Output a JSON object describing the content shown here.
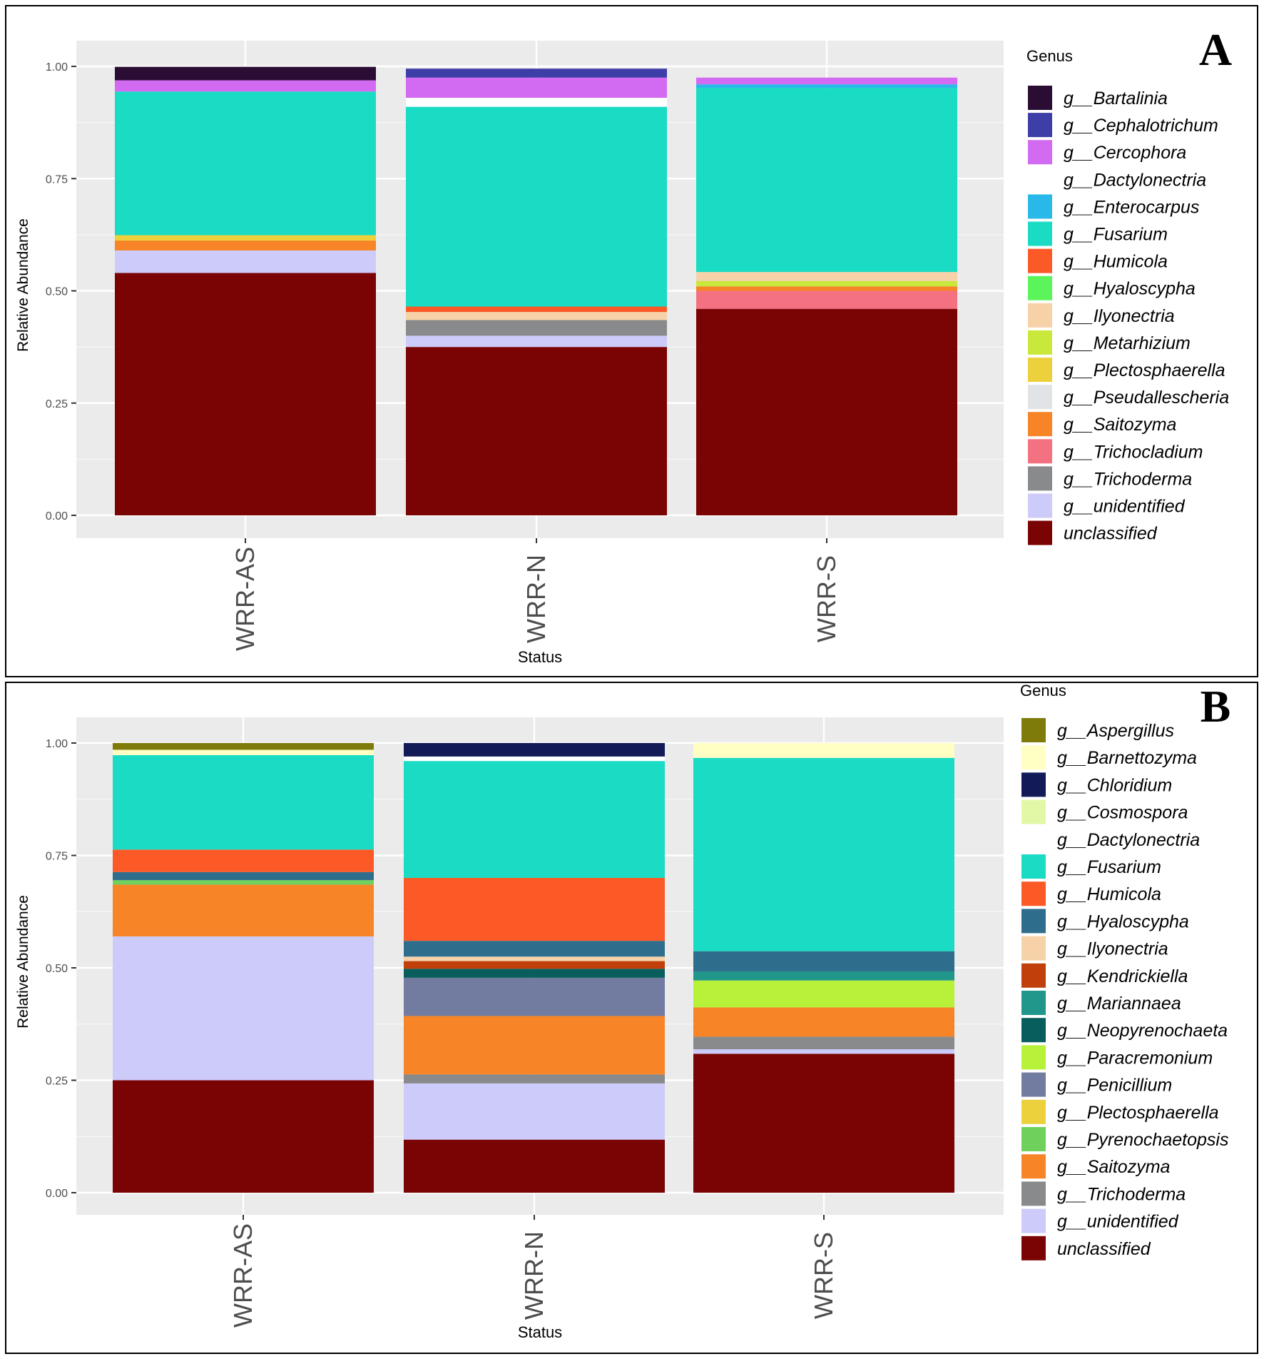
{
  "chart_data": [
    {
      "type": "bar",
      "stacked": true,
      "panel_label": "A",
      "xlabel": "Status",
      "ylabel": "Relative Abundance",
      "ylim": [
        0,
        1
      ],
      "yticks": [
        "0.00",
        "0.25",
        "0.50",
        "0.75",
        "1.00"
      ],
      "legend_title": "Genus",
      "legend_position": "right",
      "categories": [
        "WRR-AS",
        "WRR-N",
        "WRR-S"
      ],
      "series": [
        {
          "name": "g__Bartalinia",
          "color": "#2b0d33",
          "values": [
            0.03,
            0,
            0
          ]
        },
        {
          "name": "g__Cephalotrichum",
          "color": "#3e3ea8",
          "values": [
            0,
            0.02,
            0
          ]
        },
        {
          "name": "g__Cercophora",
          "color": "#d36af2",
          "values": [
            0.025,
            0.045,
            0.015
          ]
        },
        {
          "name": "g__Dactylonectria",
          "color": "#ffffff",
          "values": [
            0,
            0.02,
            0
          ]
        },
        {
          "name": "g__Enterocarpus",
          "color": "#28b9e8",
          "values": [
            0,
            0,
            0.008
          ]
        },
        {
          "name": "g__Fusarium",
          "color": "#1adbc4",
          "values": [
            0.32,
            0.445,
            0.41
          ]
        },
        {
          "name": "g__Humicola",
          "color": "#fb5926",
          "values": [
            0,
            0.012,
            0
          ]
        },
        {
          "name": "g__Hyaloscypha",
          "color": "#5bf55b",
          "values": [
            0,
            0,
            0
          ]
        },
        {
          "name": "g__Ilyonectria",
          "color": "#f7d2a8",
          "values": [
            0,
            0.018,
            0.02
          ]
        },
        {
          "name": "g__Metarhizium",
          "color": "#c8e83c",
          "values": [
            0,
            0,
            0.012
          ]
        },
        {
          "name": "g__Plectosphaerella",
          "color": "#ecd03c",
          "values": [
            0.012,
            0,
            0
          ]
        },
        {
          "name": "g__Pseudallescheria",
          "color": "#e0e4e6",
          "values": [
            0,
            0,
            0
          ]
        },
        {
          "name": "g__Saitozyma",
          "color": "#f78427",
          "values": [
            0.022,
            0,
            0.01
          ]
        },
        {
          "name": "g__Trichocladium",
          "color": "#f37181",
          "values": [
            0,
            0,
            0.04
          ]
        },
        {
          "name": "g__Trichoderma",
          "color": "#888a8c",
          "values": [
            0,
            0.035,
            0
          ]
        },
        {
          "name": "g__unidentified",
          "color": "#cccbfa",
          "values": [
            0.05,
            0.025,
            0
          ]
        },
        {
          "name": "unclassified",
          "color": "#7a0403",
          "values": [
            0.54,
            0.375,
            0.46
          ]
        }
      ]
    },
    {
      "type": "bar",
      "stacked": true,
      "panel_label": "B",
      "xlabel": "Status",
      "ylabel": "Relative Abundance",
      "ylim": [
        0,
        1
      ],
      "yticks": [
        "0.00",
        "0.25",
        "0.50",
        "0.75",
        "1.00"
      ],
      "legend_title": "Genus",
      "legend_position": "right",
      "categories": [
        "WRR-AS",
        "WRR-N",
        "WRR-S"
      ],
      "series": [
        {
          "name": "g__Aspergillus",
          "color": "#7f7b0b",
          "values": [
            0.015,
            0,
            0
          ]
        },
        {
          "name": "g__Barnettozyma",
          "color": "#fffec3",
          "values": [
            0.012,
            0,
            0.033
          ]
        },
        {
          "name": "g__Chloridium",
          "color": "#121b58",
          "values": [
            0,
            0.03,
            0
          ]
        },
        {
          "name": "g__Cosmospora",
          "color": "#e2f8a7",
          "values": [
            0,
            0,
            0
          ]
        },
        {
          "name": "g__Dactylonectria",
          "color": "#ffffff",
          "values": [
            0,
            0.01,
            0
          ]
        },
        {
          "name": "g__Fusarium",
          "color": "#1adbc4",
          "values": [
            0.21,
            0.26,
            0.43
          ]
        },
        {
          "name": "g__Humicola",
          "color": "#fb5926",
          "values": [
            0.05,
            0.14,
            0
          ]
        },
        {
          "name": "g__Hyaloscypha",
          "color": "#2e6e8c",
          "values": [
            0.018,
            0.035,
            0.045
          ]
        },
        {
          "name": "g__Ilyonectria",
          "color": "#f7d2a8",
          "values": [
            0,
            0.01,
            0
          ]
        },
        {
          "name": "g__Kendrickiella",
          "color": "#c13f0a",
          "values": [
            0,
            0.017,
            0
          ]
        },
        {
          "name": "g__Mariannaea",
          "color": "#21968a",
          "values": [
            0,
            0,
            0.02
          ]
        },
        {
          "name": "g__Neopyrenochaeta",
          "color": "#075e5c",
          "values": [
            0,
            0.02,
            0
          ]
        },
        {
          "name": "g__Paracremonium",
          "color": "#b7f13a",
          "values": [
            0,
            0,
            0.06
          ]
        },
        {
          "name": "g__Penicillium",
          "color": "#727ba0",
          "values": [
            0,
            0.085,
            0
          ]
        },
        {
          "name": "g__Plectosphaerella",
          "color": "#ecd03c",
          "values": [
            0,
            0,
            0
          ]
        },
        {
          "name": "g__Pyrenochaetopsis",
          "color": "#6fd15c",
          "values": [
            0.01,
            0,
            0
          ]
        },
        {
          "name": "g__Saitozyma",
          "color": "#f78427",
          "values": [
            0.115,
            0.13,
            0.065
          ]
        },
        {
          "name": "g__Trichoderma",
          "color": "#888a8c",
          "values": [
            0,
            0.02,
            0.028
          ]
        },
        {
          "name": "g__unidentified",
          "color": "#cccbfa",
          "values": [
            0.32,
            0.125,
            0.01
          ]
        },
        {
          "name": "unclassified",
          "color": "#7a0403",
          "values": [
            0.25,
            0.118,
            0.309
          ]
        }
      ]
    }
  ]
}
